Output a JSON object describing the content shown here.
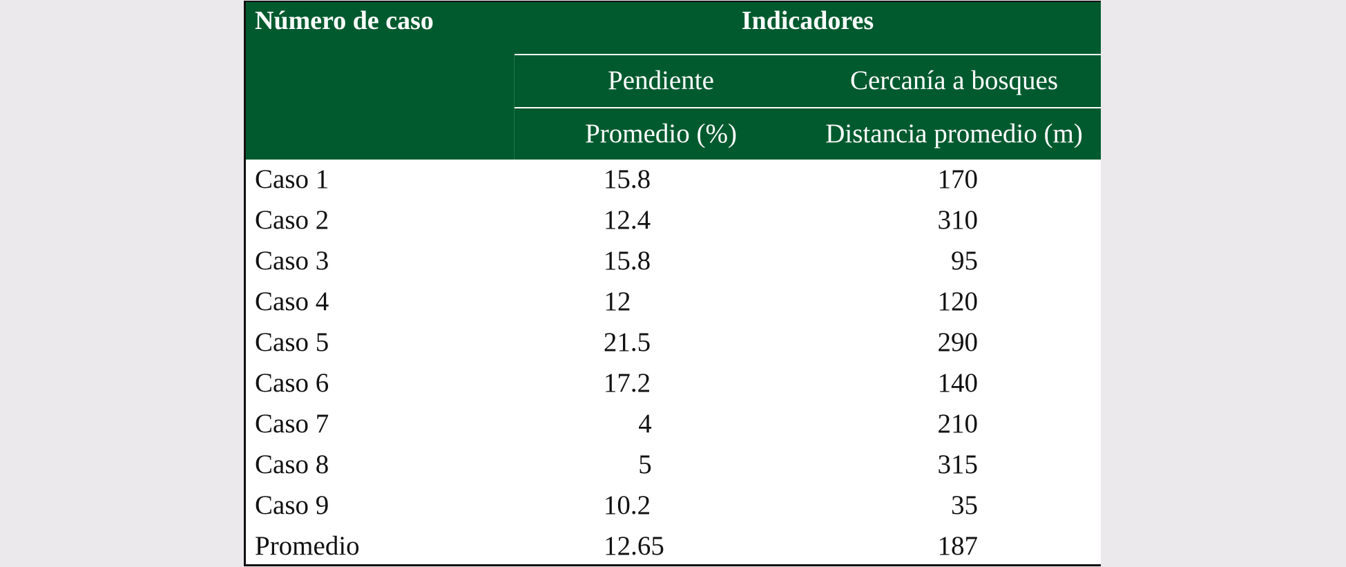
{
  "table": {
    "header": {
      "case_number": "Número de caso",
      "indicators": "Indicadores",
      "slope_group": "Pendiente",
      "forest_group": "Cercanía a bosques",
      "slope_unit": "Promedio  (%)",
      "forest_unit": "Distancia promedio (m)"
    },
    "rows": [
      {
        "name": "Caso 1",
        "slope": "15.8",
        "distance": "170"
      },
      {
        "name": "Caso 2",
        "slope": "12.4",
        "distance": "310"
      },
      {
        "name": "Caso 3",
        "slope": "15.8",
        "distance": "95"
      },
      {
        "name": "Caso 4",
        "slope": "12",
        "distance": "120"
      },
      {
        "name": "Caso 5",
        "slope": "21.5",
        "distance": "290"
      },
      {
        "name": "Caso 6",
        "slope": "17.2",
        "distance": "140"
      },
      {
        "name": "Caso 7",
        "slope": "4",
        "distance": "210"
      },
      {
        "name": "Caso 8",
        "slope": "5",
        "distance": "315"
      },
      {
        "name": "Caso 9",
        "slope": "10.2",
        "distance": "35"
      },
      {
        "name": "Promedio",
        "slope": "12.65",
        "distance": "187"
      }
    ]
  },
  "colors": {
    "header_background": "#005a2e",
    "header_text": "#ffffff",
    "page_background": "#ebe9eb"
  }
}
